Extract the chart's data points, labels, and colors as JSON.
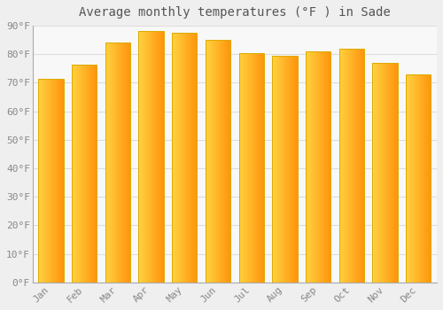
{
  "title": "Average monthly temperatures (°F ) in Sade",
  "months": [
    "Jan",
    "Feb",
    "Mar",
    "Apr",
    "May",
    "Jun",
    "Jul",
    "Aug",
    "Sep",
    "Oct",
    "Nov",
    "Dec"
  ],
  "values": [
    71.5,
    76.5,
    84.0,
    88.0,
    87.5,
    85.0,
    80.5,
    79.5,
    81.0,
    82.0,
    77.0,
    73.0
  ],
  "bar_color_left": "#FFCC44",
  "bar_color_right": "#FF9900",
  "bar_edge_color": "#DDAA00",
  "background_color": "#EFEFEF",
  "plot_bg_color": "#F8F8F8",
  "grid_color": "#DDDDDD",
  "ylim": [
    0,
    90
  ],
  "yticks": [
    0,
    10,
    20,
    30,
    40,
    50,
    60,
    70,
    80,
    90
  ],
  "ytick_labels": [
    "0°F",
    "10°F",
    "20°F",
    "30°F",
    "40°F",
    "50°F",
    "60°F",
    "70°F",
    "80°F",
    "90°F"
  ],
  "title_fontsize": 10,
  "tick_fontsize": 8,
  "title_color": "#555555",
  "tick_color": "#888888",
  "spine_color": "#AAAAAA"
}
